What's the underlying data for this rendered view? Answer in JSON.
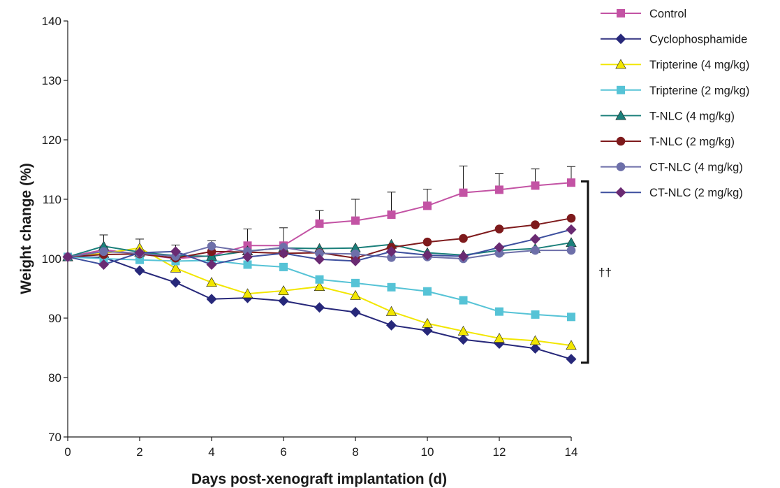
{
  "chart_data": {
    "type": "line",
    "title": "",
    "xlabel": "Days post-xenograft implantation (d)",
    "ylabel": "Weight change (%)",
    "xlim": [
      0,
      14
    ],
    "ylim": [
      70,
      140
    ],
    "x_ticks": [
      0,
      2,
      4,
      6,
      8,
      10,
      12,
      14
    ],
    "y_ticks": [
      70,
      80,
      90,
      100,
      110,
      120,
      130,
      140
    ],
    "grid": false,
    "legend_position": "right",
    "annotation": {
      "text": "††",
      "bracket_from": 113,
      "bracket_to": 82.5
    },
    "x": [
      0,
      1,
      2,
      3,
      4,
      5,
      6,
      7,
      8,
      9,
      10,
      11,
      12,
      13,
      14
    ],
    "series": [
      {
        "name": "Control",
        "color": "#c353a4",
        "marker": "square",
        "values": [
          100.3,
          101.5,
          100.8,
          100.0,
          100.5,
          102.2,
          102.2,
          105.9,
          106.4,
          107.4,
          108.9,
          111.1,
          111.6,
          112.3,
          112.8
        ],
        "errors": [
          0,
          2.5,
          2.5,
          2.3,
          2.5,
          2.8,
          3.0,
          2.2,
          3.6,
          3.8,
          2.8,
          4.5,
          2.7,
          2.8,
          2.7
        ]
      },
      {
        "name": "Cyclophosphamide",
        "color": "#27287a",
        "marker": "diamond",
        "values": [
          100.3,
          100.2,
          98.0,
          96.0,
          93.2,
          93.4,
          92.9,
          91.8,
          91.0,
          88.8,
          87.9,
          86.4,
          85.7,
          84.9,
          83.1
        ],
        "errors": [
          0,
          0,
          0,
          0,
          0,
          0,
          0,
          0,
          0,
          0,
          0,
          0,
          0,
          0,
          0
        ]
      },
      {
        "name": "Tripterine (4 mg/kg)",
        "color": "#f2e600",
        "marker": "triangle",
        "values": [
          100.3,
          100.9,
          101.8,
          98.4,
          96.0,
          94.1,
          94.6,
          95.3,
          93.8,
          91.1,
          89.1,
          87.8,
          86.6,
          86.2,
          85.4
        ],
        "errors": [
          0,
          0,
          0,
          0,
          0,
          0,
          0,
          0,
          0,
          0,
          0,
          0,
          0,
          0,
          0
        ]
      },
      {
        "name": "Tripterine (2 mg/kg)",
        "color": "#56c3d6",
        "marker": "square",
        "values": [
          100.3,
          100.0,
          99.8,
          99.6,
          99.7,
          99.0,
          98.6,
          96.5,
          95.9,
          95.2,
          94.5,
          93.0,
          91.1,
          90.6,
          90.2
        ],
        "errors": [
          0,
          0,
          0,
          0,
          0,
          0,
          0,
          0,
          0,
          0,
          0,
          0,
          0,
          0,
          0
        ]
      },
      {
        "name": "T-NLC (4 mg/kg)",
        "color": "#1a7f7a",
        "marker": "triangle",
        "values": [
          100.3,
          102.1,
          101.1,
          100.5,
          100.4,
          101.3,
          101.8,
          101.7,
          101.8,
          102.4,
          101.0,
          100.6,
          101.4,
          101.7,
          102.7
        ],
        "errors": [
          0,
          0,
          0,
          0,
          0,
          0,
          0,
          0,
          0,
          0,
          0,
          0,
          0,
          0,
          0
        ]
      },
      {
        "name": "T-NLC (2 mg/kg)",
        "color": "#7e1a1c",
        "marker": "circle",
        "values": [
          100.3,
          100.7,
          100.8,
          100.1,
          101.2,
          101.1,
          100.9,
          101.0,
          100.1,
          101.9,
          102.8,
          103.4,
          105.0,
          105.7,
          106.8
        ],
        "errors": [
          0,
          0,
          0,
          0,
          0,
          0,
          0,
          0,
          0,
          0,
          0,
          0,
          0,
          0,
          0
        ]
      },
      {
        "name": "CT-NLC (4 mg/kg)",
        "color": "#6d6fa9",
        "marker": "circle",
        "values": [
          100.3,
          101.2,
          100.9,
          100.4,
          102.1,
          101.2,
          101.9,
          100.9,
          100.8,
          100.2,
          100.3,
          100.0,
          100.9,
          101.4,
          101.4
        ],
        "errors": [
          0,
          0,
          0,
          0,
          0,
          0,
          0,
          0,
          0,
          0,
          0,
          0,
          0,
          0,
          0
        ]
      },
      {
        "name": "CT-NLC (2 mg/kg)",
        "color": "#6a2a72",
        "line_color": "#3d4f9e",
        "marker": "diamond",
        "values": [
          100.3,
          99.0,
          101.0,
          101.2,
          99.0,
          100.3,
          100.9,
          99.9,
          99.6,
          101.2,
          100.6,
          100.4,
          101.9,
          103.3,
          104.9
        ],
        "errors": [
          0,
          0,
          0,
          0,
          0,
          0,
          0,
          0,
          0,
          0,
          0,
          0,
          0,
          0,
          0
        ]
      }
    ]
  }
}
